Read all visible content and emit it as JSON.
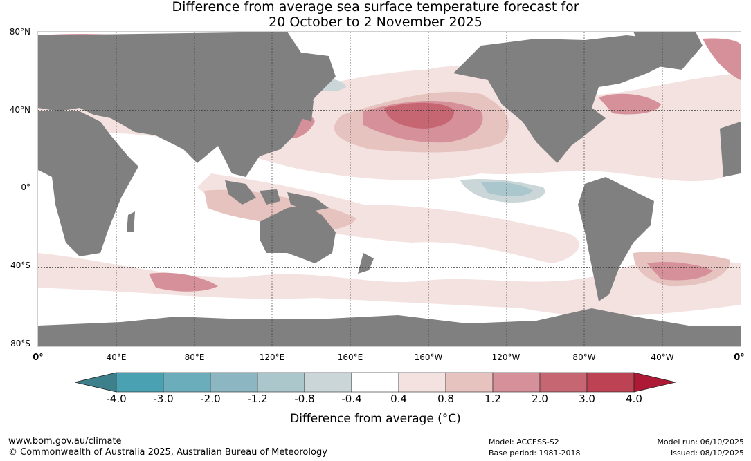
{
  "title": {
    "line1": "Difference from average sea surface temperature forecast for",
    "line2": "20 October to 2 November 2025"
  },
  "map": {
    "latitude_labels": [
      "80°N",
      "40°N",
      "0°",
      "40°S",
      "80°S"
    ],
    "longitude_labels": [
      "0°",
      "40°E",
      "80°E",
      "120°E",
      "160°E",
      "160°W",
      "120°W",
      "80°W",
      "40°W",
      "0°"
    ],
    "colors": {
      "land": "#808080",
      "anom_pos_1": "#f3e2e0",
      "anom_pos_2": "#e6c3bf",
      "anom_pos_3": "#d6909a",
      "anom_pos_4": "#c56672",
      "anom_neg_1": "#cbd6d8",
      "anom_neg_2": "#a9c7cc"
    }
  },
  "colorbar": {
    "title": "Difference from average (°C)",
    "ticks": [
      "-4.0",
      "-3.0",
      "-2.0",
      "-1.2",
      "-0.8",
      "-0.4",
      "0.4",
      "0.8",
      "1.2",
      "2.0",
      "3.0",
      "4.0"
    ],
    "colors": [
      "#3d7f8b",
      "#4aa1b2",
      "#6cadbb",
      "#8db6c3",
      "#abc7cc",
      "#cbd6d8",
      "#ffffff",
      "#f3e2e0",
      "#e6c3bf",
      "#d6909a",
      "#c56672",
      "#bd4354",
      "#ae1a35"
    ]
  },
  "footer": {
    "website": "www.bom.gov.au/climate",
    "copyright": "© Commonwealth of Australia 2025, Australian Bureau of Meteorology",
    "model": "Model: ACCESS-S2",
    "base_period": "Base period: 1981-2018",
    "model_run": "Model run: 06/10/2025",
    "issued": "Issued: 08/10/2025"
  }
}
